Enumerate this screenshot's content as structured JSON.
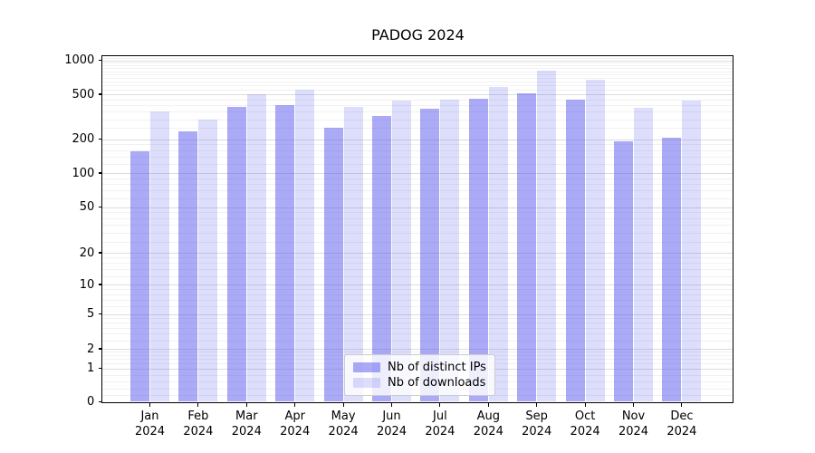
{
  "chart_data": {
    "type": "bar",
    "title": "PADOG 2024",
    "categories": [
      "Jan",
      "Feb",
      "Mar",
      "Apr",
      "May",
      "Jun",
      "Jul",
      "Aug",
      "Sep",
      "Oct",
      "Nov",
      "Dec"
    ],
    "category_year": "2024",
    "series": [
      {
        "name": "Nb of distinct IPs",
        "color": "rgba(85,85,238,0.5)",
        "values": [
          155,
          235,
          385,
          400,
          250,
          320,
          370,
          460,
          505,
          450,
          190,
          205
        ]
      },
      {
        "name": "Nb of downloads",
        "color": "rgba(85,85,238,0.2)",
        "values": [
          350,
          300,
          500,
          550,
          385,
          440,
          445,
          585,
          815,
          670,
          380,
          440
        ]
      }
    ],
    "xlabel": "",
    "ylabel": "",
    "y_scale": "symlog",
    "y_ticks": [
      0,
      1,
      2,
      5,
      10,
      20,
      50,
      100,
      200,
      500,
      1000
    ],
    "ylim": [
      0,
      1090
    ],
    "grid": true,
    "legend_position": "lower center",
    "colors": {
      "bars_base": "#5555ee",
      "grid_major": "#dcdcdc",
      "grid_minor": "#f1f1f1"
    }
  }
}
